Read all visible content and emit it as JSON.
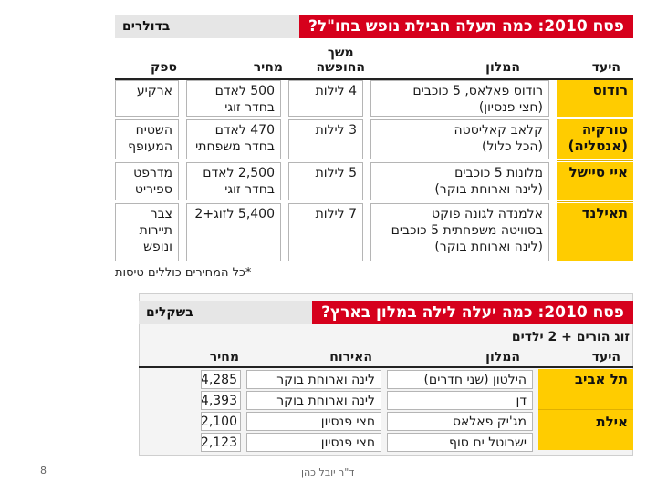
{
  "table1": {
    "currency_tag": "בדולרים",
    "title": "פסח 2010: כמה תעלה חבילת נופש בחו\"ל?",
    "headers": {
      "dest": "היעד",
      "hotel": "המלון",
      "duration": "משך\nהחופשה",
      "price": "מחיר",
      "supplier": "ספק"
    },
    "rows": [
      {
        "dest": "רודוס",
        "hotel": "רודוס פאלאס, 5 כוכבים\n(חצי פנסיון)",
        "duration": "4 לילות",
        "price": "500 לאדם\nבחדר זוגי",
        "supplier": "ארקיע"
      },
      {
        "dest": "טורקיה\n(אנטליה)",
        "hotel": "קלאב קאליסטה\n(הכל כלול)",
        "duration": "3 לילות",
        "price": "470 לאדם\nבחדר משפחתי",
        "supplier": "השטיח\nהמעופף"
      },
      {
        "dest": "איי סיישל",
        "hotel": "מלונות 5 כוכבים\n(לינה וארוחת בוקר)",
        "duration": "5 לילות",
        "price": "2,500 לאדם\nבחדר זוגי",
        "supplier": "מדרפט\nספיריט"
      },
      {
        "dest": "תאילנד",
        "hotel": "אלמנדה לגונה פוקט\nבסוויטה משפחתית 5 כוכבים\n(לינה וארוחת בוקר)",
        "duration": "7 לילות",
        "price": "5,400 לזוג+2",
        "supplier": "צבר\nתיירות\nונופש"
      }
    ],
    "note": "*כל המחירים כוללים טיסות"
  },
  "table2": {
    "currency_tag": "בשקלים",
    "title": "פסח 2010: כמה יעלה לילה במלון בארץ?",
    "subtitle": "זוג הורים + 2 ילדים",
    "headers": {
      "dest": "היעד",
      "hotel": "המלון",
      "board": "האירוח",
      "price": "מחיר"
    },
    "rows": [
      {
        "dest": "תל אביב",
        "hotel": "הילטון (שני חדרים)",
        "board": "לינה וארוחת בוקר",
        "price": "4,285"
      },
      {
        "dest": "",
        "hotel": "דן",
        "board": "לינה וארוחת בוקר",
        "price": "4,393"
      },
      {
        "dest": "אילת",
        "hotel": "מג'יק פאלאס",
        "board": "חצי פנסיון",
        "price": "2,100"
      },
      {
        "dest": "",
        "hotel": "ישרוטל ים סוף",
        "board": "חצי פנסיון",
        "price": "2,123"
      }
    ]
  },
  "footer": {
    "page_number": "8",
    "author": "ד\"ר יובל כהן"
  }
}
